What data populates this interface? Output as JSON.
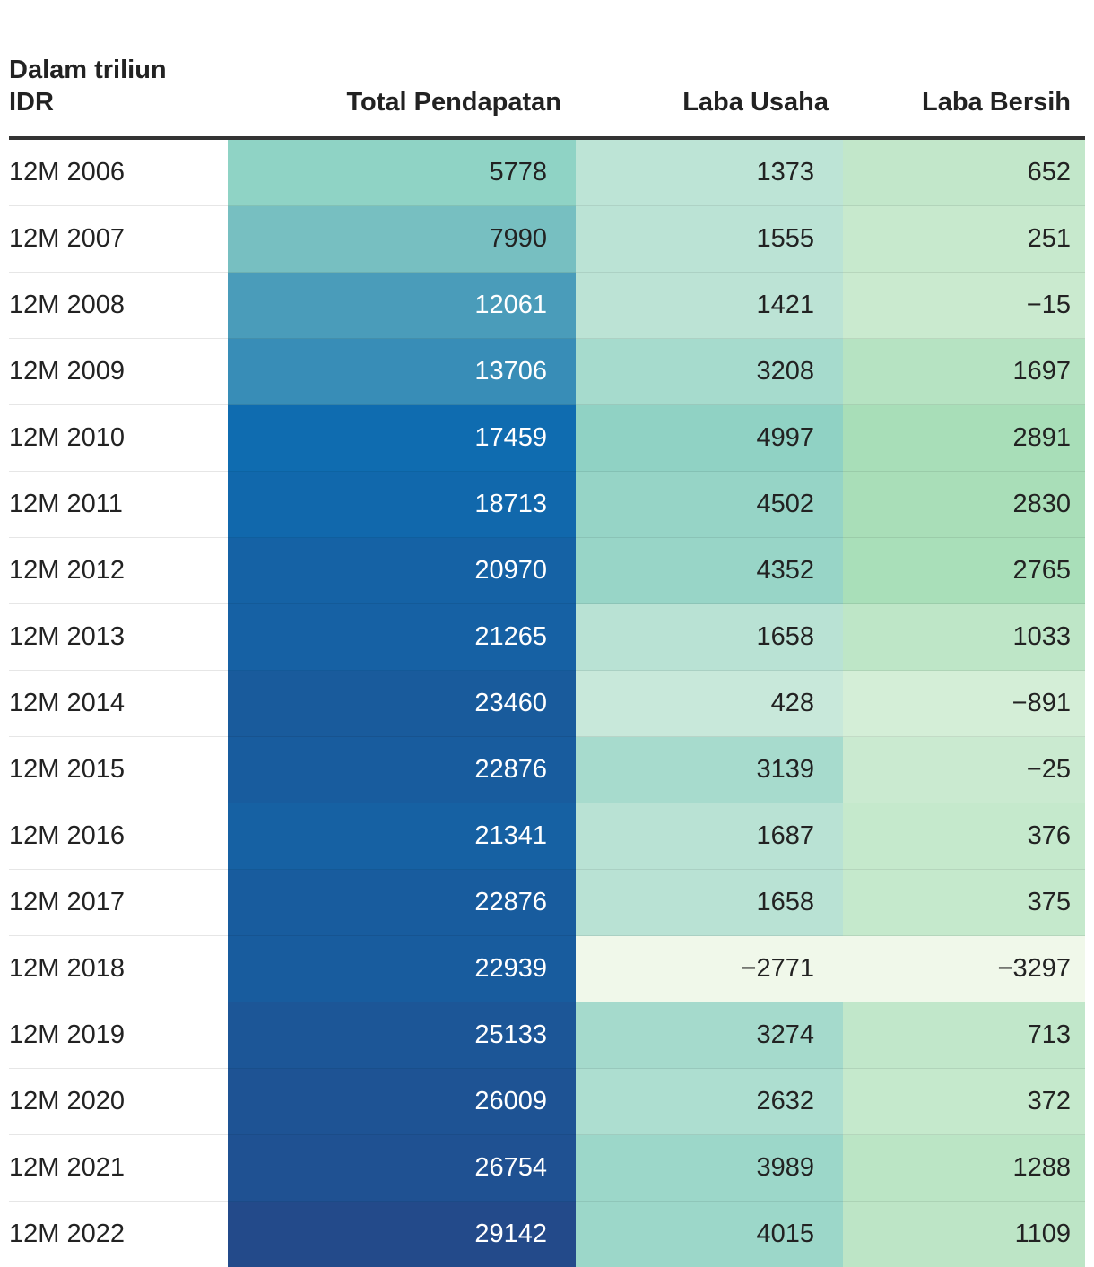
{
  "chart_data": {
    "type": "table",
    "title": "",
    "columns": [
      "Dalam triliun\nIDR",
      "Total Pendapatan",
      "Laba Usaha",
      "Laba Bersih"
    ],
    "rows": [
      [
        "12M 2006",
        "5778",
        "1373",
        "652"
      ],
      [
        "12M 2007",
        "7990",
        "1555",
        "251"
      ],
      [
        "12M 2008",
        "12061",
        "1421",
        "−15"
      ],
      [
        "12M 2009",
        "13706",
        "3208",
        "1697"
      ],
      [
        "12M 2010",
        "17459",
        "4997",
        "2891"
      ],
      [
        "12M 2011",
        "18713",
        "4502",
        "2830"
      ],
      [
        "12M 2012",
        "20970",
        "4352",
        "2765"
      ],
      [
        "12M 2013",
        "21265",
        "1658",
        "1033"
      ],
      [
        "12M 2014",
        "23460",
        "428",
        "−891"
      ],
      [
        "12M 2015",
        "22876",
        "3139",
        "−25"
      ],
      [
        "12M 2016",
        "21341",
        "1687",
        "376"
      ],
      [
        "12M 2017",
        "22876",
        "1658",
        "375"
      ],
      [
        "12M 2018",
        "22939",
        "−2771",
        "−3297"
      ],
      [
        "12M 2019",
        "25133",
        "3274",
        "713"
      ],
      [
        "12M 2020",
        "26009",
        "2632",
        "372"
      ],
      [
        "12M 2021",
        "26754",
        "3989",
        "1288"
      ],
      [
        "12M 2022",
        "29142",
        "4015",
        "1109"
      ]
    ],
    "color_scales": {
      "Total Pendapatan": {
        "domain": [
          5778,
          29142
        ],
        "colors": [
          "#8fd3c5",
          "#0f6cb0",
          "#234a8a"
        ]
      },
      "Laba Usaha": {
        "domain": [
          -2771,
          4997
        ],
        "colors": [
          "#f0f8ea",
          "#90d2c4"
        ]
      },
      "Laba Bersih": {
        "domain": [
          -3297,
          2891
        ],
        "colors": [
          "#f0f8ea",
          "#a8deb8"
        ]
      }
    }
  }
}
